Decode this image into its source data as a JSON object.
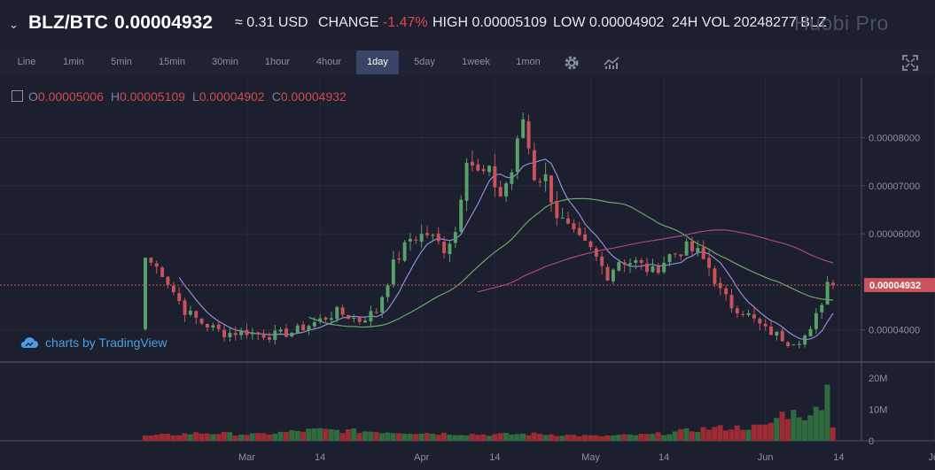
{
  "header": {
    "pair": "BLZ/BTC",
    "last_price": "0.00004932",
    "usd_price": "≈ 0.31 USD",
    "change_label": "CHANGE",
    "change_value": "-1.47%",
    "high_text": "HIGH 0.00005109",
    "low_text": "LOW 0.00004902",
    "volume_text": "24H VOL 20248277 BLZ",
    "brand": "Huobi Pro"
  },
  "toolbar": {
    "timeframes": [
      {
        "label": "Line"
      },
      {
        "label": "1min"
      },
      {
        "label": "5min"
      },
      {
        "label": "15min"
      },
      {
        "label": "30min"
      },
      {
        "label": "1hour"
      },
      {
        "label": "4hour"
      },
      {
        "label": "1day",
        "active": true
      },
      {
        "label": "5day"
      },
      {
        "label": "1week"
      },
      {
        "label": "1mon"
      }
    ],
    "icons": [
      "settings-icon",
      "indicators-icon",
      "fullscreen-icon"
    ]
  },
  "legend": {
    "o_label": "O",
    "o_value": "0.00005006",
    "h_label": "H",
    "h_value": "0.00005109",
    "l_label": "L",
    "l_value": "0.00004902",
    "c_label": "C",
    "c_value": "0.00004932"
  },
  "watermark": "charts by TradingView",
  "colors": {
    "background": "#1b1f2e",
    "up": "#59a06a",
    "down": "#c9535a",
    "ma_short": "#8f8fd6",
    "ma_mid": "#6aa86a",
    "ma_long": "#b0428a",
    "price_tag": "#c9535a"
  },
  "chart_data": {
    "type": "candlestick",
    "y_ticks": [
      "0.00008000",
      "0.00007000",
      "0.00006000",
      "0.00004000"
    ],
    "ylim": [
      3.35e-05,
      9.15e-05
    ],
    "current_price_tag": "0.00004932",
    "current_price": 4.932e-05,
    "x_tick_labels": [
      {
        "label": "Mar",
        "day": 18
      },
      {
        "label": "14",
        "day": 31
      },
      {
        "label": "Apr",
        "day": 49
      },
      {
        "label": "14",
        "day": 62
      },
      {
        "label": "May",
        "day": 79
      },
      {
        "label": "14",
        "day": 92
      },
      {
        "label": "Jun",
        "day": 110
      },
      {
        "label": "14",
        "day": 123
      },
      {
        "label": "Jul",
        "day": 140
      }
    ],
    "volume_ticks": [
      "20M",
      "10M",
      "0"
    ],
    "volume_ylim": [
      0,
      22000000
    ],
    "anchor_closes": [
      [
        0,
        5.5e-05
      ],
      [
        3,
        5.2e-05
      ],
      [
        7,
        4.4e-05
      ],
      [
        10,
        4.15e-05
      ],
      [
        14,
        3.93e-05
      ],
      [
        18,
        3.96e-05
      ],
      [
        22,
        3.88e-05
      ],
      [
        26,
        3.95e-05
      ],
      [
        30,
        4.15e-05
      ],
      [
        34,
        4.37e-05
      ],
      [
        38,
        4.2e-05
      ],
      [
        41,
        4.4e-05
      ],
      [
        44,
        5.35e-05
      ],
      [
        47,
        5.9e-05
      ],
      [
        50,
        6e-05
      ],
      [
        53,
        5.7e-05
      ],
      [
        55,
        6.05e-05
      ],
      [
        57,
        7.65e-05
      ],
      [
        59,
        7.25e-05
      ],
      [
        61,
        7.25e-05
      ],
      [
        63,
        6.8e-05
      ],
      [
        65,
        7.3e-05
      ],
      [
        67,
        8.4e-05
      ],
      [
        69,
        7.2e-05
      ],
      [
        71,
        7.15e-05
      ],
      [
        73,
        6.4e-05
      ],
      [
        76,
        5.95e-05
      ],
      [
        79,
        5.65e-05
      ],
      [
        82,
        5.15e-05
      ],
      [
        84,
        5.45e-05
      ],
      [
        87,
        5.4e-05
      ],
      [
        90,
        5.2e-05
      ],
      [
        93,
        5.55e-05
      ],
      [
        96,
        5.7e-05
      ],
      [
        98,
        5.6e-05
      ],
      [
        100,
        5.3e-05
      ],
      [
        102,
        4.8e-05
      ],
      [
        104,
        4.5e-05
      ],
      [
        106,
        4.4e-05
      ],
      [
        108,
        4.2e-05
      ],
      [
        110,
        4e-05
      ],
      [
        112,
        3.9e-05
      ],
      [
        114,
        3.75e-05
      ],
      [
        116,
        3.8e-05
      ],
      [
        118,
        3.95e-05
      ],
      [
        120,
        4.6e-05
      ],
      [
        121,
        5e-05
      ],
      [
        122,
        4.93e-05
      ]
    ],
    "volume_anchors": [
      [
        0,
        1500000
      ],
      [
        10,
        2500000
      ],
      [
        20,
        2000000
      ],
      [
        30,
        3500000
      ],
      [
        40,
        3000000
      ],
      [
        50,
        2500000
      ],
      [
        60,
        2000000
      ],
      [
        70,
        2200000
      ],
      [
        80,
        1500000
      ],
      [
        90,
        2000000
      ],
      [
        100,
        4000000
      ],
      [
        110,
        4500000
      ],
      [
        113,
        8500000
      ],
      [
        116,
        9000000
      ],
      [
        118,
        7000000
      ],
      [
        120,
        13000000
      ],
      [
        121,
        21000000
      ],
      [
        122,
        4000000
      ]
    ],
    "ma_periods": [
      7,
      30,
      60
    ]
  }
}
